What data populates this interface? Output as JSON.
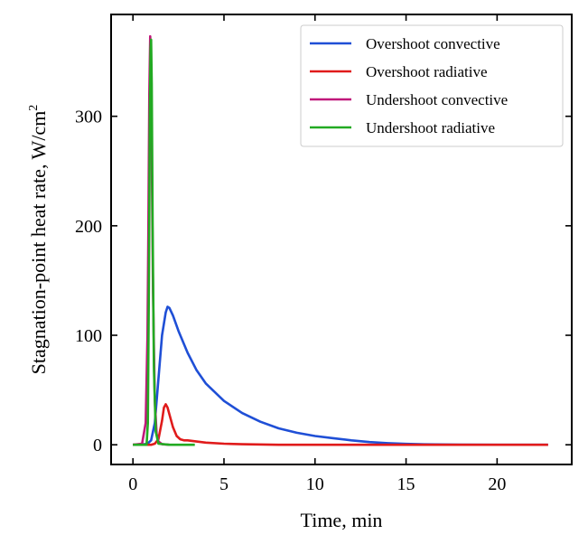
{
  "chart_data": {
    "type": "line",
    "title": "",
    "xlabel": "Time, min",
    "ylabel": "Stagnation-point heat rate, W/cm",
    "ylabel_superscript": "2",
    "xlim": [
      -1.2,
      24.1
    ],
    "ylim": [
      -18,
      393
    ],
    "xticks": [
      0,
      5,
      10,
      15,
      20
    ],
    "yticks": [
      0,
      100,
      200,
      300
    ],
    "legend_position": "top-right",
    "grid": false,
    "series": [
      {
        "name": "Overshoot convective",
        "color": "#1f4fd6",
        "x": [
          0,
          0.4,
          0.8,
          1.0,
          1.2,
          1.4,
          1.6,
          1.8,
          1.9,
          2.0,
          2.2,
          2.5,
          3.0,
          3.5,
          4.0,
          5.0,
          6.0,
          7.0,
          8.0,
          9.0,
          10.0,
          11.0,
          12.0,
          13.0,
          14.0,
          15.0,
          16.0,
          18.0,
          20.0,
          22.8
        ],
        "y": [
          0,
          0,
          1,
          4,
          20,
          60,
          100,
          121,
          126,
          125,
          118,
          104,
          84,
          68,
          56,
          40,
          29,
          21,
          15,
          11,
          8,
          6,
          4,
          2.5,
          1.5,
          0.8,
          0.4,
          0.1,
          0,
          0
        ]
      },
      {
        "name": "Overshoot radiative",
        "color": "#e01b1b",
        "x": [
          0,
          1.0,
          1.2,
          1.4,
          1.6,
          1.7,
          1.8,
          1.9,
          2.0,
          2.2,
          2.4,
          2.6,
          2.8,
          3.0,
          3.5,
          4.0,
          5.0,
          6.0,
          8.0,
          10.0,
          15.0,
          20.0,
          22.8
        ],
        "y": [
          0,
          0,
          1,
          5,
          22,
          34,
          37,
          34,
          28,
          16,
          8,
          5,
          4,
          4,
          3,
          2,
          1,
          0.5,
          0,
          0,
          0,
          0,
          0
        ]
      },
      {
        "name": "Undershoot convective",
        "color": "#c0187a",
        "x": [
          0,
          0.5,
          0.7,
          0.8,
          0.85,
          0.9,
          0.95,
          1.0,
          1.05,
          1.1,
          1.2,
          1.3,
          1.4,
          1.6,
          2.0
        ],
        "y": [
          0,
          1,
          20,
          100,
          200,
          320,
          373,
          340,
          230,
          140,
          40,
          10,
          3,
          0.5,
          0
        ]
      },
      {
        "name": "Undershoot radiative",
        "color": "#22aa22",
        "x": [
          0,
          0.75,
          0.82,
          0.88,
          0.93,
          0.97,
          1.0,
          1.03,
          1.08,
          1.15,
          1.25,
          1.4,
          2.0,
          3.4
        ],
        "y": [
          0,
          0,
          20,
          150,
          300,
          362,
          370,
          330,
          200,
          70,
          12,
          1,
          0,
          0
        ]
      }
    ]
  }
}
